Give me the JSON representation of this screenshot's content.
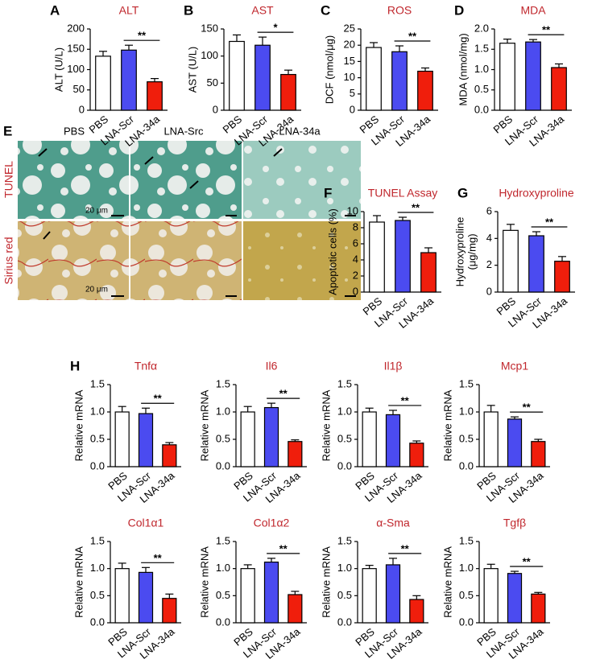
{
  "chart_data": [
    {
      "type": "bar",
      "panel": "A",
      "title": "ALT",
      "ylabel": "ALT (U/L)",
      "categories": [
        "PBS",
        "LNA-Scr",
        "LNA-34a"
      ],
      "values": [
        133,
        148,
        70
      ],
      "errors": [
        12,
        12,
        8
      ],
      "colors": [
        "#ffffff",
        "#4b4bf0",
        "#f01e0c"
      ],
      "ylim": [
        0,
        200
      ],
      "yticks": [
        0,
        50,
        100,
        150,
        200
      ],
      "significance": "**"
    },
    {
      "type": "bar",
      "panel": "B",
      "title": "AST",
      "ylabel": "AST (U/L)",
      "categories": [
        "PBS",
        "LNA-Scr",
        "LNA-34a"
      ],
      "values": [
        127,
        120,
        66
      ],
      "errors": [
        12,
        15,
        8
      ],
      "colors": [
        "#ffffff",
        "#4b4bf0",
        "#f01e0c"
      ],
      "ylim": [
        0,
        150
      ],
      "yticks": [
        0,
        50,
        100,
        150
      ],
      "significance": "*"
    },
    {
      "type": "bar",
      "panel": "C",
      "title": "ROS",
      "ylabel": "DCF (nmol/μg)",
      "categories": [
        "PBS",
        "LNA-Scr",
        "LNA-34a"
      ],
      "values": [
        19.3,
        18,
        12
      ],
      "errors": [
        1.5,
        1.8,
        1
      ],
      "colors": [
        "#ffffff",
        "#4b4bf0",
        "#f01e0c"
      ],
      "ylim": [
        0,
        25
      ],
      "yticks": [
        0,
        5,
        10,
        15,
        20,
        25
      ],
      "significance": "**"
    },
    {
      "type": "bar",
      "panel": "D",
      "title": "MDA",
      "ylabel": "MDA (nmol/mg)",
      "categories": [
        "PBS",
        "LNA-Scr",
        "LNA-34a"
      ],
      "values": [
        1.65,
        1.68,
        1.05
      ],
      "errors": [
        0.1,
        0.06,
        0.09
      ],
      "colors": [
        "#ffffff",
        "#4b4bf0",
        "#f01e0c"
      ],
      "ylim": [
        0,
        2
      ],
      "yticks": [
        {
          "value": 0,
          "label": "0.0"
        },
        0.5,
        {
          "value": 1,
          "label": "1.0"
        },
        1.5,
        {
          "value": 2,
          "label": "2.0"
        }
      ],
      "significance": "**"
    },
    {
      "type": "bar",
      "panel": "F",
      "title": "TUNEL Assay",
      "ylabel": "Apoptotic cells (%)",
      "categories": [
        "PBS",
        "LNA-Scr",
        "LNA-34a"
      ],
      "values": [
        8.7,
        8.9,
        4.9
      ],
      "errors": [
        0.8,
        0.4,
        0.6
      ],
      "colors": [
        "#ffffff",
        "#4b4bf0",
        "#f01e0c"
      ],
      "ylim": [
        0,
        10
      ],
      "yticks": [
        0,
        2,
        4,
        6,
        8,
        10
      ],
      "significance": "**"
    },
    {
      "type": "bar",
      "panel": "G",
      "title": "Hydroxyproline",
      "ylabel": [
        "Hydroxyproline",
        "(μg/mg)"
      ],
      "categories": [
        "PBS",
        "LNA-Scr",
        "LNA-34a"
      ],
      "values": [
        4.6,
        4.2,
        2.3
      ],
      "errors": [
        0.45,
        0.3,
        0.35
      ],
      "colors": [
        "#ffffff",
        "#4b4bf0",
        "#f01e0c"
      ],
      "ylim": [
        0,
        6
      ],
      "yticks": [
        0,
        2,
        4,
        6
      ],
      "significance": "**"
    },
    {
      "type": "bar",
      "panel": "H",
      "title": "Tnfα",
      "ylabel": "Relative mRNA",
      "categories": [
        "PBS",
        "LNA-Scr",
        "LNA-34a"
      ],
      "values": [
        1.0,
        0.97,
        0.4
      ],
      "errors": [
        0.1,
        0.1,
        0.04
      ],
      "colors": [
        "#ffffff",
        "#4b4bf0",
        "#f01e0c"
      ],
      "ylim": [
        0,
        1.5
      ],
      "yticks": [
        {
          "value": 0,
          "label": "0.0"
        },
        0.5,
        {
          "value": 1,
          "label": "1.0"
        },
        1.5
      ],
      "significance": "**"
    },
    {
      "type": "bar",
      "title": "Il6",
      "ylabel": "Relative mRNA",
      "categories": [
        "PBS",
        "LNA-Scr",
        "LNA-34a"
      ],
      "values": [
        1.0,
        1.08,
        0.46
      ],
      "errors": [
        0.1,
        0.08,
        0.03
      ],
      "colors": [
        "#ffffff",
        "#4b4bf0",
        "#f01e0c"
      ],
      "ylim": [
        0,
        1.5
      ],
      "yticks": [
        {
          "value": 0,
          "label": "0.0"
        },
        0.5,
        {
          "value": 1,
          "label": "1.0"
        },
        1.5
      ],
      "significance": "**"
    },
    {
      "type": "bar",
      "title": "Il1β",
      "ylabel": "Relative mRNA",
      "categories": [
        "PBS",
        "LNA-Scr",
        "LNA-34a"
      ],
      "values": [
        1.0,
        0.95,
        0.43
      ],
      "errors": [
        0.07,
        0.08,
        0.04
      ],
      "colors": [
        "#ffffff",
        "#4b4bf0",
        "#f01e0c"
      ],
      "ylim": [
        0,
        1.5
      ],
      "yticks": [
        {
          "value": 0,
          "label": "0.0"
        },
        0.5,
        {
          "value": 1,
          "label": "1.0"
        },
        1.5
      ],
      "significance": "**"
    },
    {
      "type": "bar",
      "title": "Mcp1",
      "ylabel": "Relative mRNA",
      "categories": [
        "PBS",
        "LNA-Scr",
        "LNA-34a"
      ],
      "values": [
        1.0,
        0.87,
        0.46
      ],
      "errors": [
        0.12,
        0.04,
        0.04
      ],
      "colors": [
        "#ffffff",
        "#4b4bf0",
        "#f01e0c"
      ],
      "ylim": [
        0,
        1.5
      ],
      "yticks": [
        {
          "value": 0,
          "label": "0.0"
        },
        0.5,
        {
          "value": 1,
          "label": "1.0"
        },
        1.5
      ],
      "significance": "**"
    },
    {
      "type": "bar",
      "title": "Col1α1",
      "ylabel": "Relative mRNA",
      "categories": [
        "PBS",
        "LNA-Scr",
        "LNA-34a"
      ],
      "values": [
        1.0,
        0.93,
        0.45
      ],
      "errors": [
        0.1,
        0.09,
        0.08
      ],
      "colors": [
        "#ffffff",
        "#4b4bf0",
        "#f01e0c"
      ],
      "ylim": [
        0,
        1.5
      ],
      "yticks": [
        {
          "value": 0,
          "label": "0.0"
        },
        0.5,
        {
          "value": 1,
          "label": "1.0"
        },
        1.5
      ],
      "significance": "**"
    },
    {
      "type": "bar",
      "title": "Col1α2",
      "ylabel": "Relative mRNA",
      "categories": [
        "PBS",
        "LNA-Scr",
        "LNA-34a"
      ],
      "values": [
        1.0,
        1.12,
        0.52
      ],
      "errors": [
        0.07,
        0.07,
        0.06
      ],
      "colors": [
        "#ffffff",
        "#4b4bf0",
        "#f01e0c"
      ],
      "ylim": [
        0,
        1.5
      ],
      "yticks": [
        {
          "value": 0,
          "label": "0.0"
        },
        0.5,
        {
          "value": 1,
          "label": "1.0"
        },
        1.5
      ],
      "significance": "**"
    },
    {
      "type": "bar",
      "title": "α-Sma",
      "ylabel": "Relative mRNA",
      "categories": [
        "PBS",
        "LNA-Scr",
        "LNA-34a"
      ],
      "values": [
        1.0,
        1.07,
        0.43
      ],
      "errors": [
        0.06,
        0.12,
        0.07
      ],
      "colors": [
        "#ffffff",
        "#4b4bf0",
        "#f01e0c"
      ],
      "ylim": [
        0,
        1.5
      ],
      "yticks": [
        {
          "value": 0,
          "label": "0.0"
        },
        0.5,
        {
          "value": 1,
          "label": "1.0"
        },
        1.5
      ],
      "significance": "**"
    },
    {
      "type": "bar",
      "title": "Tgfβ",
      "ylabel": "Relative mRNA",
      "categories": [
        "PBS",
        "LNA-Scr",
        "LNA-34a"
      ],
      "values": [
        1.0,
        0.91,
        0.53
      ],
      "errors": [
        0.08,
        0.04,
        0.03
      ],
      "colors": [
        "#ffffff",
        "#4b4bf0",
        "#f01e0c"
      ],
      "ylim": [
        0,
        1.5
      ],
      "yticks": [
        {
          "value": 0,
          "label": "0.0"
        },
        0.5,
        {
          "value": 1,
          "label": "1.0"
        },
        1.5
      ],
      "significance": "**"
    }
  ],
  "panel_e": {
    "letter": "E",
    "columns": [
      "PBS",
      "LNA-Src",
      "LNA-34a"
    ],
    "rows": [
      "TUNEL",
      "Sirius red"
    ],
    "scale_bar": "20 μm"
  }
}
